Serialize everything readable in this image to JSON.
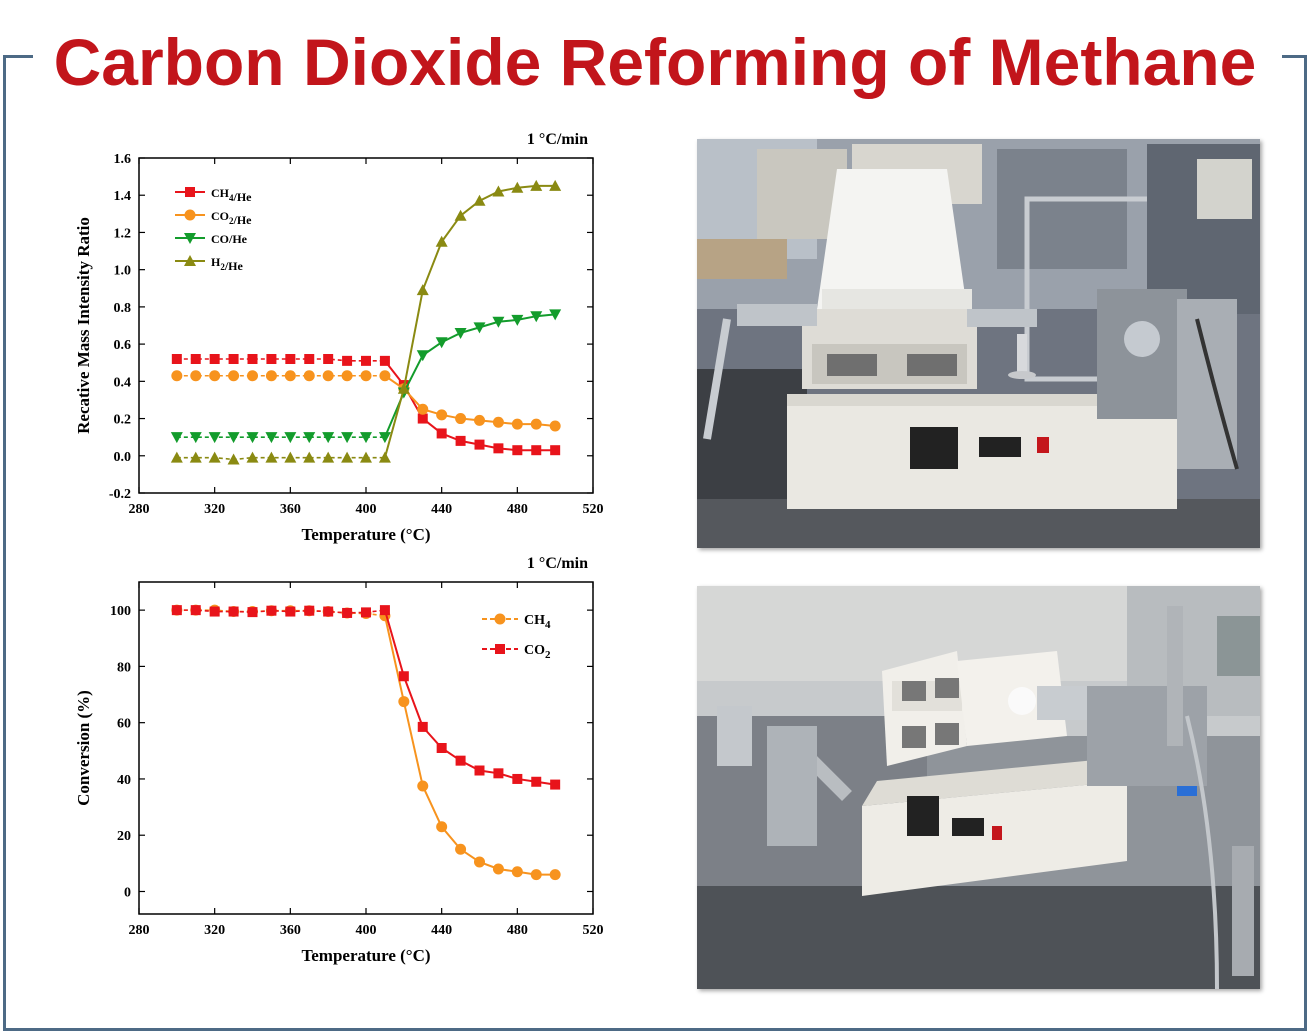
{
  "title": "Carbon Dioxide Reforming of Methane",
  "chart_data": [
    {
      "type": "line",
      "rate_label": "1 °C/min",
      "xlabel": "Temperature (°C)",
      "ylabel": "Recative Mass Intensity Ratio",
      "xlim": [
        280,
        520
      ],
      "ylim": [
        -0.2,
        1.6
      ],
      "xticks": [
        280,
        320,
        360,
        400,
        440,
        480,
        520
      ],
      "yticks": [
        -0.2,
        0.0,
        0.2,
        0.4,
        0.6,
        0.8,
        1.0,
        1.2,
        1.4,
        1.6
      ],
      "legend_position": "top-left",
      "x": [
        300,
        310,
        320,
        330,
        340,
        350,
        360,
        370,
        380,
        390,
        400,
        410,
        420,
        430,
        440,
        450,
        460,
        470,
        480,
        490,
        500
      ],
      "series": [
        {
          "name": "CH4/He",
          "marker": "square",
          "color": "#e8141b",
          "values": [
            0.52,
            0.52,
            0.52,
            0.52,
            0.52,
            0.52,
            0.52,
            0.52,
            0.52,
            0.51,
            0.51,
            0.51,
            0.38,
            0.2,
            0.12,
            0.08,
            0.06,
            0.04,
            0.03,
            0.03,
            0.03
          ]
        },
        {
          "name": "CO2/He",
          "marker": "circle",
          "color": "#f7931e",
          "values": [
            0.43,
            0.43,
            0.43,
            0.43,
            0.43,
            0.43,
            0.43,
            0.43,
            0.43,
            0.43,
            0.43,
            0.43,
            0.36,
            0.25,
            0.22,
            0.2,
            0.19,
            0.18,
            0.17,
            0.17,
            0.16
          ]
        },
        {
          "name": "CO/He",
          "marker": "triangle-down",
          "color": "#139c2c",
          "values": [
            0.1,
            0.1,
            0.1,
            0.1,
            0.1,
            0.1,
            0.1,
            0.1,
            0.1,
            0.1,
            0.1,
            0.1,
            0.34,
            0.54,
            0.61,
            0.66,
            0.69,
            0.72,
            0.73,
            0.75,
            0.76
          ]
        },
        {
          "name": "H2/He",
          "marker": "triangle-up",
          "color": "#8a8a12",
          "values": [
            -0.01,
            -0.01,
            -0.01,
            -0.02,
            -0.01,
            -0.01,
            -0.01,
            -0.01,
            -0.01,
            -0.01,
            -0.01,
            -0.01,
            0.36,
            0.89,
            1.15,
            1.29,
            1.37,
            1.42,
            1.44,
            1.45,
            1.45
          ]
        }
      ]
    },
    {
      "type": "line",
      "rate_label": "1 °C/min",
      "xlabel": "Temperature (°C)",
      "ylabel": "Conversion (%)",
      "xlim": [
        280,
        520
      ],
      "ylim": [
        -8,
        110
      ],
      "xticks": [
        280,
        320,
        360,
        400,
        440,
        480,
        520
      ],
      "yticks": [
        0,
        20,
        40,
        60,
        80,
        100
      ],
      "legend_position": "top-right",
      "x": [
        300,
        310,
        320,
        330,
        340,
        350,
        360,
        370,
        380,
        390,
        400,
        410,
        420,
        430,
        440,
        450,
        460,
        470,
        480,
        490,
        500
      ],
      "series": [
        {
          "name": "CH4",
          "marker": "circle",
          "color": "#f7931e",
          "values": [
            100,
            100,
            100,
            99.5,
            99.5,
            99.8,
            99.8,
            99.8,
            99.5,
            99.0,
            98.8,
            98.0,
            67.5,
            37.5,
            23.0,
            15.0,
            10.5,
            8.0,
            7.0,
            6.0,
            6.0
          ]
        },
        {
          "name": "CO2",
          "marker": "square",
          "color": "#e8141b",
          "values": [
            100,
            100,
            99.5,
            99.5,
            99.3,
            99.8,
            99.5,
            99.8,
            99.5,
            99.0,
            99.2,
            100,
            76.5,
            58.5,
            51.0,
            46.5,
            43.0,
            42.0,
            40.0,
            39.0,
            38.0
          ]
        }
      ]
    }
  ],
  "photos": [
    {
      "alt": "tube furnace reactor setup, front view"
    },
    {
      "alt": "tube furnace reactor setup, angled view"
    }
  ]
}
